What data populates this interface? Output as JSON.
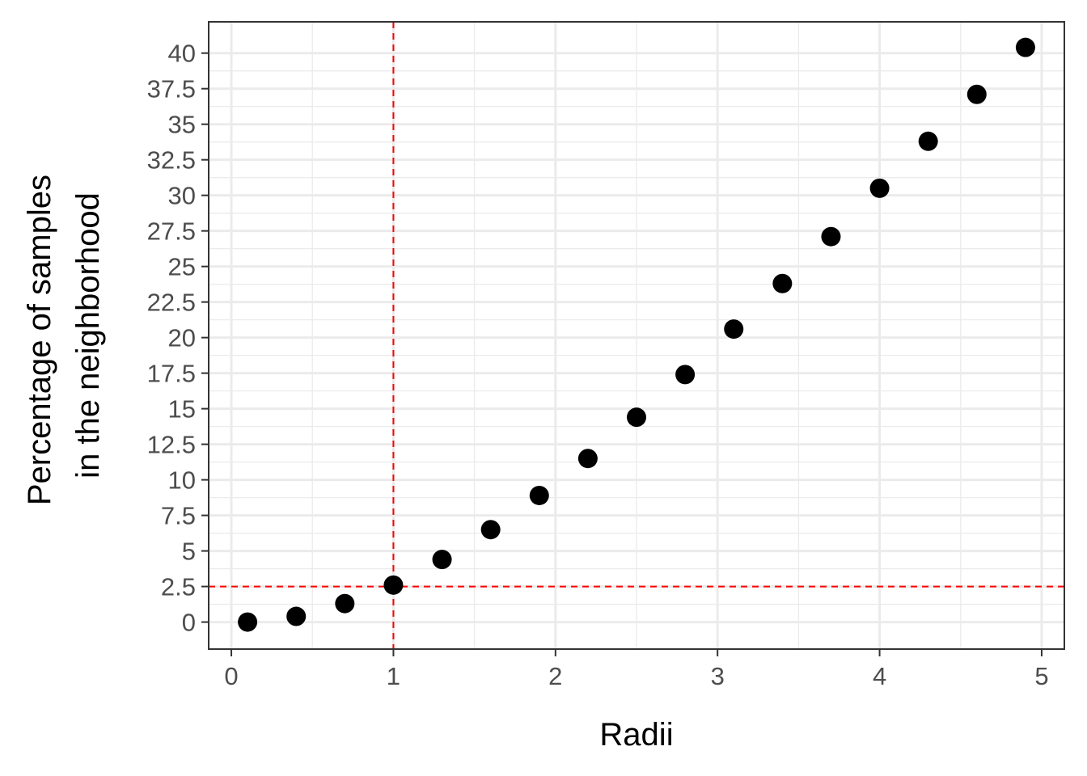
{
  "chart_data": {
    "type": "scatter",
    "xlabel": "Radii",
    "ylabel_lines": [
      "Percentage of samples",
      "in the neighborhood"
    ],
    "xlim": [
      -0.14,
      5.14
    ],
    "ylim": [
      -1.9,
      42.2
    ],
    "x_ticks": [
      0,
      1,
      2,
      3,
      4,
      5
    ],
    "x_tick_labels": [
      "0",
      "1",
      "2",
      "3",
      "4",
      "5"
    ],
    "y_ticks": [
      0,
      2.5,
      5,
      7.5,
      10,
      12.5,
      15,
      17.5,
      20,
      22.5,
      25,
      27.5,
      30,
      32.5,
      35,
      37.5,
      40
    ],
    "y_tick_labels": [
      "0",
      "2.5",
      "5",
      "7.5",
      "10",
      "12.5",
      "15",
      "17.5",
      "20",
      "22.5",
      "25",
      "27.5",
      "30",
      "32.5",
      "35",
      "37.5",
      "40"
    ],
    "points": {
      "x": [
        0.1,
        0.4,
        0.7,
        1.0,
        1.3,
        1.6,
        1.9,
        2.2,
        2.5,
        2.8,
        3.1,
        3.4,
        3.7,
        4.0,
        4.3,
        4.6,
        4.9
      ],
      "y": [
        0.0,
        0.4,
        1.3,
        2.6,
        4.4,
        6.5,
        8.9,
        11.5,
        14.4,
        17.4,
        20.6,
        23.8,
        27.1,
        30.5,
        33.8,
        37.1,
        40.4
      ]
    },
    "reference_lines": {
      "vertical_x": 1,
      "horizontal_y": 2.5,
      "color": "#ff0000",
      "style": "dashed"
    },
    "grid": true,
    "point_color": "#000000",
    "panel_border_color": "#333333",
    "grid_color": "#ebebeb"
  }
}
